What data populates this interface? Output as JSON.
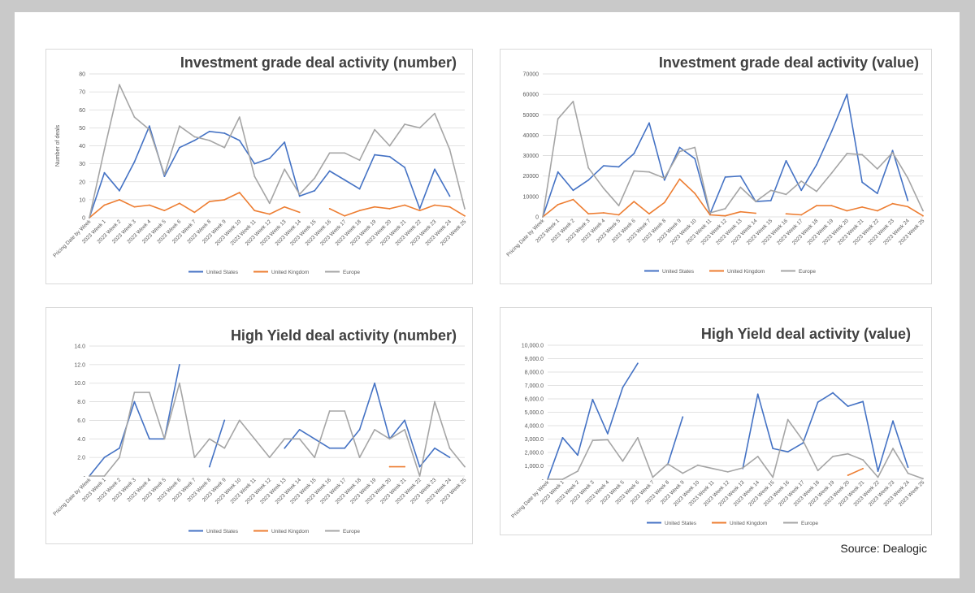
{
  "source": "Source: Dealogic",
  "colors": {
    "us": "#4472c4",
    "uk": "#ed7d31",
    "eu": "#a5a5a5",
    "grid": "#d9d9d9",
    "text": "#595959"
  },
  "chart_data": [
    {
      "type": "line",
      "title": "Investment grade deal activity (number)",
      "ylabel": "Number of deals",
      "xlabel": "",
      "ylim": [
        0,
        80
      ],
      "yticks": [
        "0",
        "10",
        "20",
        "30",
        "40",
        "50",
        "60",
        "70",
        "80"
      ],
      "grid": true,
      "legend": "bottom",
      "x": [
        "Pricing Date by Week",
        "2023 Week 1",
        "2023 Week 2",
        "2023 Week 3",
        "2023 Week 4",
        "2023 Week 5",
        "2023 Week 6",
        "2023 Week 7",
        "2023 Week 8",
        "2023 Week 9",
        "2023 Week 10",
        "2023 Week 11",
        "2023 Week 12",
        "2023 Week 13",
        "2023 Week 14",
        "2023 Week 15",
        "2023 Week 16",
        "2023 Week 17",
        "2023 Week 18",
        "2023 Week 19",
        "2023 Week 20",
        "2023 Week 21",
        "2023 Week 22",
        "2023 Week 23",
        "2023 Week 24",
        "2023 Week 25"
      ],
      "series": [
        {
          "name": "United States",
          "color": "#4472c4",
          "values": [
            0,
            25,
            15,
            31,
            51,
            23,
            39,
            43,
            48,
            47,
            43,
            30,
            33,
            42,
            12,
            15,
            26,
            21,
            16,
            35,
            34,
            28,
            5,
            27,
            12,
            null
          ]
        },
        {
          "name": "United Kingdom",
          "color": "#ed7d31",
          "values": [
            0,
            7,
            10,
            6,
            7,
            4,
            8,
            3,
            9,
            10,
            14,
            4,
            2,
            6,
            3,
            null,
            5,
            1,
            4,
            6,
            5,
            7,
            4,
            7,
            6,
            1
          ]
        },
        {
          "name": "Europe",
          "color": "#a5a5a5",
          "values": [
            0,
            38,
            74,
            56,
            49,
            24,
            51,
            45,
            43,
            39,
            56,
            23,
            8,
            27,
            13,
            22,
            36,
            36,
            32,
            49,
            40,
            52,
            50,
            58,
            38,
            5
          ]
        }
      ]
    },
    {
      "type": "line",
      "title": "Investment grade deal activity (value)",
      "xlabel": "",
      "ylabel": "",
      "ylim": [
        0,
        70000
      ],
      "yticks": [
        "0",
        "10000",
        "20000",
        "30000",
        "40000",
        "50000",
        "60000",
        "70000"
      ],
      "grid": true,
      "legend": "bottom",
      "x": [
        "Pricing Date by Week",
        "2023 Week 1",
        "2023 Week 2",
        "2023 Week 3",
        "2023 Week 4",
        "2023 Week 5",
        "2023 Week 6",
        "2023 Week 7",
        "2023 Week 8",
        "2023 Week 9",
        "2023 Week 10",
        "2023 Week 11",
        "2023 Week 12",
        "2023 Week 13",
        "2023 Week 14",
        "2023 Week 15",
        "2023 Week 16",
        "2023 Week 17",
        "2023 Week 18",
        "2023 Week 19",
        "2023 Week 20",
        "2023 Week 21",
        "2023 Week 22",
        "2023 Week 23",
        "2023 Week 24",
        "2023 Week 25"
      ],
      "series": [
        {
          "name": "United States",
          "color": "#4472c4",
          "values": [
            0,
            22000,
            13000,
            18000,
            25000,
            24500,
            31000,
            46000,
            18000,
            34000,
            28500,
            1500,
            19500,
            20000,
            7500,
            8000,
            27500,
            13000,
            25500,
            42000,
            60000,
            17000,
            11500,
            32500,
            8000,
            null
          ]
        },
        {
          "name": "United Kingdom",
          "color": "#ed7d31",
          "values": [
            0,
            6000,
            8500,
            1500,
            2000,
            1000,
            7500,
            1500,
            7000,
            18500,
            11500,
            1000,
            500,
            2500,
            1800,
            null,
            1500,
            1000,
            5500,
            5500,
            3000,
            4800,
            3000,
            6500,
            5000,
            500
          ]
        },
        {
          "name": "Europe",
          "color": "#a5a5a5",
          "values": [
            0,
            48000,
            56500,
            24000,
            14000,
            5500,
            22500,
            22000,
            19000,
            32000,
            34000,
            2000,
            4000,
            14500,
            7500,
            13000,
            11000,
            17500,
            12500,
            21500,
            31000,
            30500,
            23500,
            31500,
            19000,
            3000
          ]
        }
      ]
    },
    {
      "type": "line",
      "title": "High Yield deal activity (number)",
      "xlabel": "",
      "ylabel": "",
      "ylim": [
        0,
        14
      ],
      "yticks": [
        "-",
        "2.0",
        "4.0",
        "6.0",
        "8.0",
        "10.0",
        "12.0",
        "14.0"
      ],
      "grid": true,
      "legend": "bottom",
      "x": [
        "Pricing Date by Week",
        "2023 Week 1",
        "2023 Week 2",
        "2023 Week 3",
        "2023 Week 4",
        "2023 Week 5",
        "2023 Week 6",
        "2023 Week 7",
        "2023 Week 8",
        "2023 Week 9",
        "2023 Week 10",
        "2023 Week 11",
        "2023 Week 12",
        "2023 Week 13",
        "2023 Week 14",
        "2023 Week 15",
        "2023 Week 16",
        "2023 Week 17",
        "2023 Week 18",
        "2023 Week 19",
        "2023 Week 20",
        "2023 Week 21",
        "2023 Week 22",
        "2023 Week 23",
        "2023 Week 24",
        "2023 Week 25"
      ],
      "series": [
        {
          "name": "United States",
          "color": "#4472c4",
          "values": [
            0,
            2,
            3,
            8,
            4,
            4,
            12,
            null,
            1,
            6,
            null,
            null,
            null,
            3,
            5,
            4,
            3,
            3,
            5,
            10,
            4,
            6,
            1,
            3,
            2,
            null
          ]
        },
        {
          "name": "United Kingdom",
          "color": "#ed7d31",
          "values": [
            null,
            null,
            null,
            null,
            null,
            null,
            null,
            null,
            null,
            null,
            null,
            null,
            null,
            null,
            null,
            null,
            null,
            null,
            null,
            null,
            1,
            1,
            null,
            null,
            null,
            null
          ]
        },
        {
          "name": "Europe",
          "color": "#a5a5a5",
          "values": [
            0,
            0,
            2,
            9,
            9,
            4,
            10,
            2,
            4,
            3,
            6,
            4,
            2,
            4,
            4,
            2,
            7,
            7,
            2,
            5,
            4,
            5,
            0,
            8,
            3,
            1
          ]
        }
      ]
    },
    {
      "type": "line",
      "title": "High Yield deal activity (value)",
      "xlabel": "",
      "ylabel": "",
      "ylim": [
        0,
        10000
      ],
      "yticks": [
        "-",
        "1,000.0",
        "2,000.0",
        "3,000.0",
        "4,000.0",
        "5,000.0",
        "6,000.0",
        "7,000.0",
        "8,000.0",
        "9,000.0",
        "10,000.0"
      ],
      "grid": true,
      "legend": "bottom",
      "x": [
        "Pricing Date by Week",
        "2023 Week 1",
        "2023 Week 2",
        "2023 Week 3",
        "2023 Week 4",
        "2023 Week 5",
        "2023 Week 6",
        "2023 Week 7",
        "2023 Week 8",
        "2023 Week 9",
        "2023 Week 10",
        "2023 Week 11",
        "2023 Week 12",
        "2023 Week 13",
        "2023 Week 14",
        "2023 Week 15",
        "2023 Week 16",
        "2023 Week 17",
        "2023 Week 18",
        "2023 Week 19",
        "2023 Week 20",
        "2023 Week 21",
        "2023 Week 22",
        "2023 Week 23",
        "2023 Week 24",
        "2023 Week 25"
      ],
      "series": [
        {
          "name": "United States",
          "color": "#4472c4",
          "values": [
            0,
            3100,
            1800,
            5950,
            3400,
            6850,
            8650,
            null,
            1100,
            4650,
            null,
            null,
            null,
            800,
            6350,
            2300,
            2050,
            2700,
            5750,
            6450,
            5450,
            5800,
            600,
            4350,
            900,
            null
          ]
        },
        {
          "name": "United Kingdom",
          "color": "#ed7d31",
          "values": [
            null,
            null,
            null,
            null,
            null,
            null,
            null,
            null,
            null,
            null,
            null,
            null,
            null,
            null,
            null,
            null,
            null,
            null,
            null,
            null,
            300,
            800,
            null,
            null,
            null,
            null
          ]
        },
        {
          "name": "Europe",
          "color": "#a5a5a5",
          "values": [
            0,
            0,
            600,
            2900,
            2950,
            1350,
            3100,
            150,
            1150,
            450,
            1050,
            800,
            550,
            850,
            1700,
            150,
            4450,
            2900,
            650,
            1700,
            1900,
            1450,
            150,
            2300,
            450,
            50
          ]
        }
      ]
    }
  ]
}
